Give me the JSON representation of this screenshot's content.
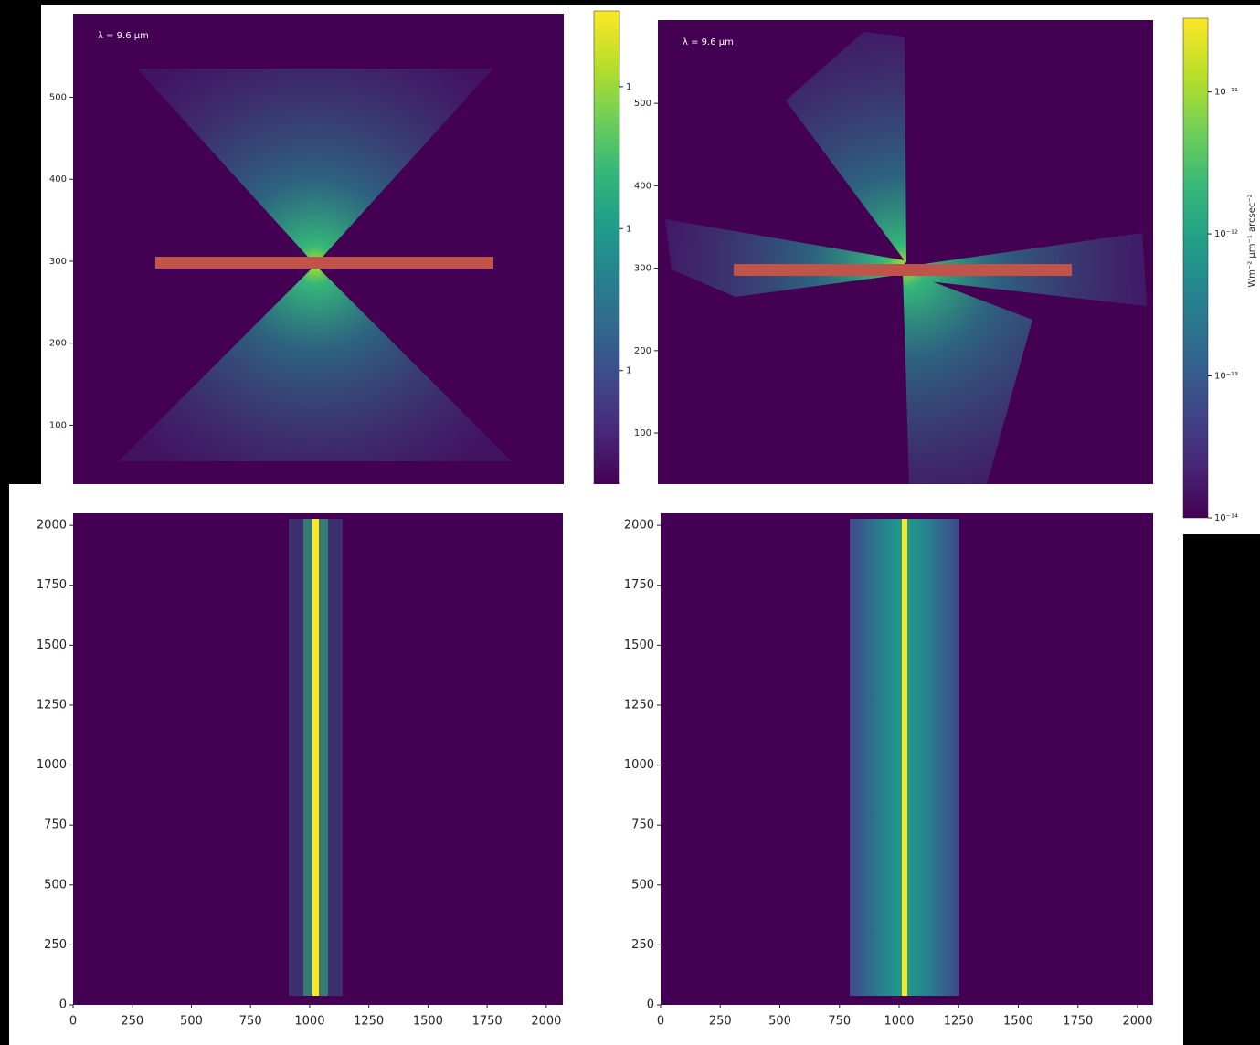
{
  "chart_data": [
    {
      "type": "image",
      "annotation": "λ = 9.6 μm",
      "ylim": [
        28,
        602
      ],
      "yticks": [
        100,
        200,
        300,
        400,
        500
      ],
      "colorbar": {
        "clim": [
          0.5,
          1.5
        ],
        "ticks": [
          {
            "value": 0.74,
            "label": "1"
          },
          {
            "value": 1.04,
            "label": "1"
          },
          {
            "value": 1.34,
            "label": "1"
          }
        ]
      }
    },
    {
      "type": "image",
      "annotation": "λ = 9.6 μm",
      "ylim": [
        38,
        601
      ],
      "yticks": [
        100,
        200,
        300,
        400,
        500
      ],
      "colorbar": {
        "clim": [
          1e-14,
          3.3e-11
        ],
        "log": true,
        "label": "Wm⁻² μm⁻¹ arcsec⁻²",
        "ticks": [
          {
            "value": 1e-11,
            "label": "10⁻¹¹"
          },
          {
            "value": 1e-12,
            "label": "10⁻¹²"
          },
          {
            "value": 1e-13,
            "label": "10⁻¹³"
          },
          {
            "value": 1e-14,
            "label": "10⁻¹⁴"
          }
        ]
      }
    },
    {
      "type": "image",
      "xlim": [
        0,
        2070
      ],
      "ylim": [
        0,
        2050
      ],
      "xticks": [
        0,
        250,
        500,
        750,
        1000,
        1250,
        1500,
        1750,
        2000
      ],
      "yticks": [
        0,
        250,
        500,
        750,
        1000,
        1250,
        1500,
        1750,
        2000
      ]
    },
    {
      "type": "image",
      "xlim": [
        0,
        2065
      ],
      "ylim": [
        0,
        2050
      ],
      "xticks": [
        0,
        250,
        500,
        750,
        1000,
        1250,
        1500,
        1750,
        2000
      ],
      "yticks": [
        0,
        250,
        500,
        750,
        1000,
        1250,
        1500,
        1750,
        2000
      ]
    }
  ]
}
